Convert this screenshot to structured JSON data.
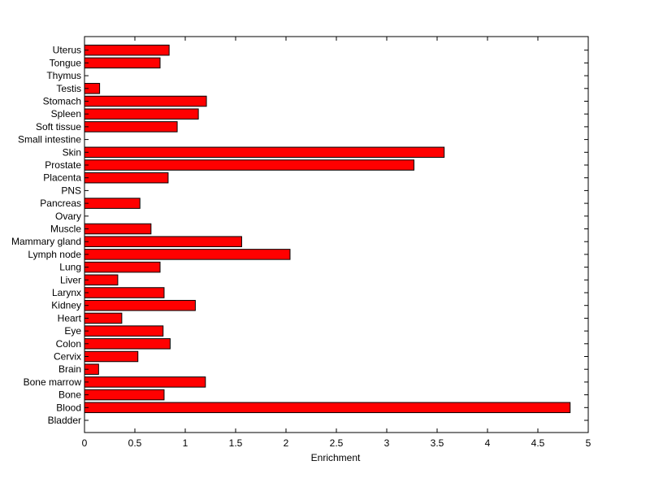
{
  "chart_data": {
    "type": "bar",
    "orientation": "horizontal",
    "title": "",
    "xlabel": "Enrichment",
    "ylabel": "",
    "xlim": [
      0,
      5
    ],
    "xticks": [
      "0",
      "0.5",
      "1",
      "1.5",
      "2",
      "2.5",
      "3",
      "3.5",
      "4",
      "4.5",
      "5"
    ],
    "grid": false,
    "legend": "none",
    "bar_color": "#ff0000",
    "bar_edge_color": "#000000",
    "categories": [
      "Bladder",
      "Blood",
      "Bone",
      "Bone marrow",
      "Brain",
      "Cervix",
      "Colon",
      "Eye",
      "Heart",
      "Kidney",
      "Larynx",
      "Liver",
      "Lung",
      "Lymph node",
      "Mammary gland",
      "Muscle",
      "Ovary",
      "Pancreas",
      "PNS",
      "Placenta",
      "Prostate",
      "Skin",
      "Small intestine",
      "Soft tissue",
      "Spleen",
      "Stomach",
      "Testis",
      "Thymus",
      "Tongue",
      "Uterus"
    ],
    "values": [
      0,
      4.82,
      0.79,
      1.2,
      0.14,
      0.53,
      0.85,
      0.78,
      0.37,
      1.1,
      0.79,
      0.33,
      0.75,
      2.04,
      1.56,
      0.66,
      0,
      0.55,
      0,
      0.83,
      3.27,
      3.57,
      0,
      0.92,
      1.13,
      1.21,
      0.15,
      0,
      0.75,
      0.84
    ]
  }
}
